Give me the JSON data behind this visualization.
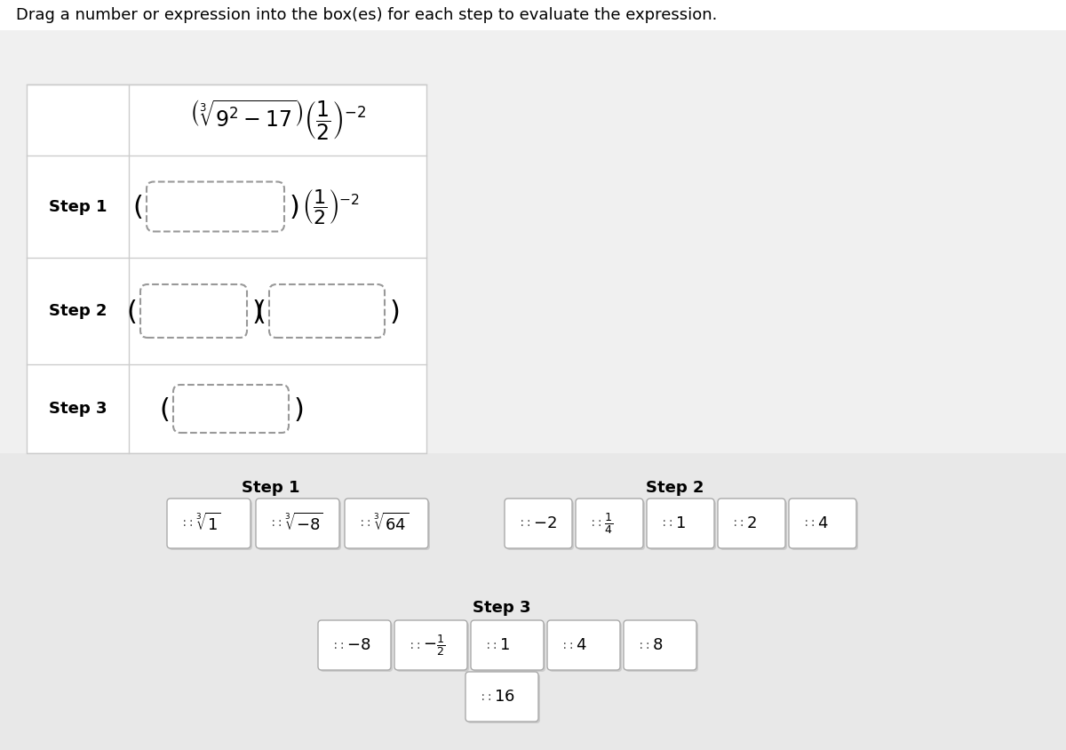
{
  "bg_color": "#f0f0f0",
  "top_bg": "#ffffff",
  "instruction": "Drag a number or expression into the box(es) for each step to evaluate the expression.",
  "instruction_fontsize": 13,
  "main_expression": "\\left(\\sqrt[3]{9^2 - 17}\\right)\\left(\\frac{1}{2}\\right)^{-2}",
  "step1_label": "Step 1",
  "step2_label": "Step 2",
  "step3_label": "Step 3",
  "step1_expr_after": "\\left(\\frac{1}{2}\\right)^{-2}",
  "card_bg": "#f8f8f8",
  "card_border": "#cccccc",
  "card_shadow": "#dddddd",
  "step1_cards": [
    {
      "text": "\\sqrt[3]{1}",
      "prefix": "::"
    },
    {
      "text": "\\sqrt[3]{-8}",
      "prefix": "::"
    },
    {
      "text": "\\sqrt[3]{64}",
      "prefix": "::"
    }
  ],
  "step2_cards": [
    {
      "text": "-2",
      "prefix": "::"
    },
    {
      "text": "\\frac{1}{4}",
      "prefix": "::"
    },
    {
      "text": "1",
      "prefix": "::"
    },
    {
      "text": "2",
      "prefix": "::"
    },
    {
      "text": "4",
      "prefix": "::"
    }
  ],
  "step3_cards": [
    {
      "text": "-8",
      "prefix": "::"
    },
    {
      "text": "-\\frac{1}{2}",
      "prefix": "::"
    },
    {
      "text": "1",
      "prefix": "::"
    },
    {
      "text": "4",
      "prefix": "::"
    },
    {
      "text": "8",
      "prefix": "::"
    },
    {
      "text": "16",
      "prefix": "::"
    }
  ]
}
